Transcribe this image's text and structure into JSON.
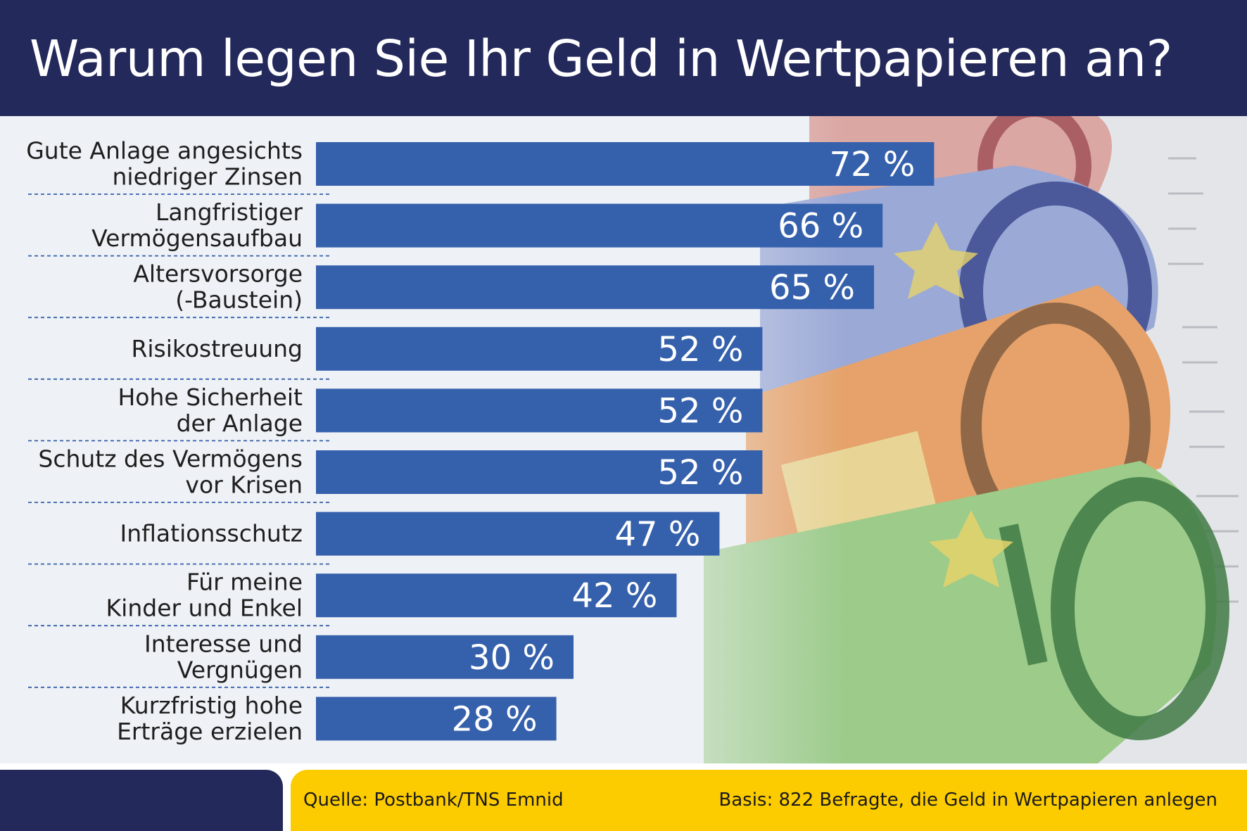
{
  "title": "Warum legen Sie Ihr Geld in Wertpapieren an?",
  "colors": {
    "header": "#23295a",
    "bar": "#3560ac",
    "footer_accent": "#fccc00",
    "background": "#eef1f5"
  },
  "chart_data": {
    "type": "bar",
    "orientation": "horizontal",
    "title": "Warum legen Sie Ihr Geld in Wertpapieren an?",
    "categories": [
      [
        "Gute Anlage angesichts",
        "niedriger Zinsen"
      ],
      [
        "Langfristiger",
        "Vermögensaufbau"
      ],
      [
        "Altersvorsorge",
        "(-Baustein)"
      ],
      [
        "Risikostreuung"
      ],
      [
        "Hohe Sicherheit",
        "der Anlage"
      ],
      [
        "Schutz des Vermögens",
        "vor Krisen"
      ],
      [
        "Inflationsschutz"
      ],
      [
        "Für meine",
        "Kinder und Enkel"
      ],
      [
        "Interesse und",
        "Vergnügen"
      ],
      [
        "Kurzfristig hohe",
        "Erträge erzielen"
      ]
    ],
    "values": [
      72,
      66,
      65,
      52,
      52,
      52,
      47,
      42,
      30,
      28
    ],
    "value_labels": [
      "72 %",
      "66 %",
      "65 %",
      "52 %",
      "52 %",
      "52 %",
      "47 %",
      "42 %",
      "30 %",
      "28 %"
    ],
    "unit": "%",
    "grid": false,
    "legend": "none"
  },
  "footer": {
    "source": "Quelle: Postbank/TNS Emnid",
    "basis": "Basis: 822 Befragte, die Geld in Wertpapieren anlegen"
  },
  "background_image": {
    "icons": [
      "euro-banknote-500-icon",
      "euro-banknote-200-icon",
      "euro-banknote-50-icon",
      "euro-banknote-100-icon",
      "newspaper-stock-table-icon"
    ]
  }
}
